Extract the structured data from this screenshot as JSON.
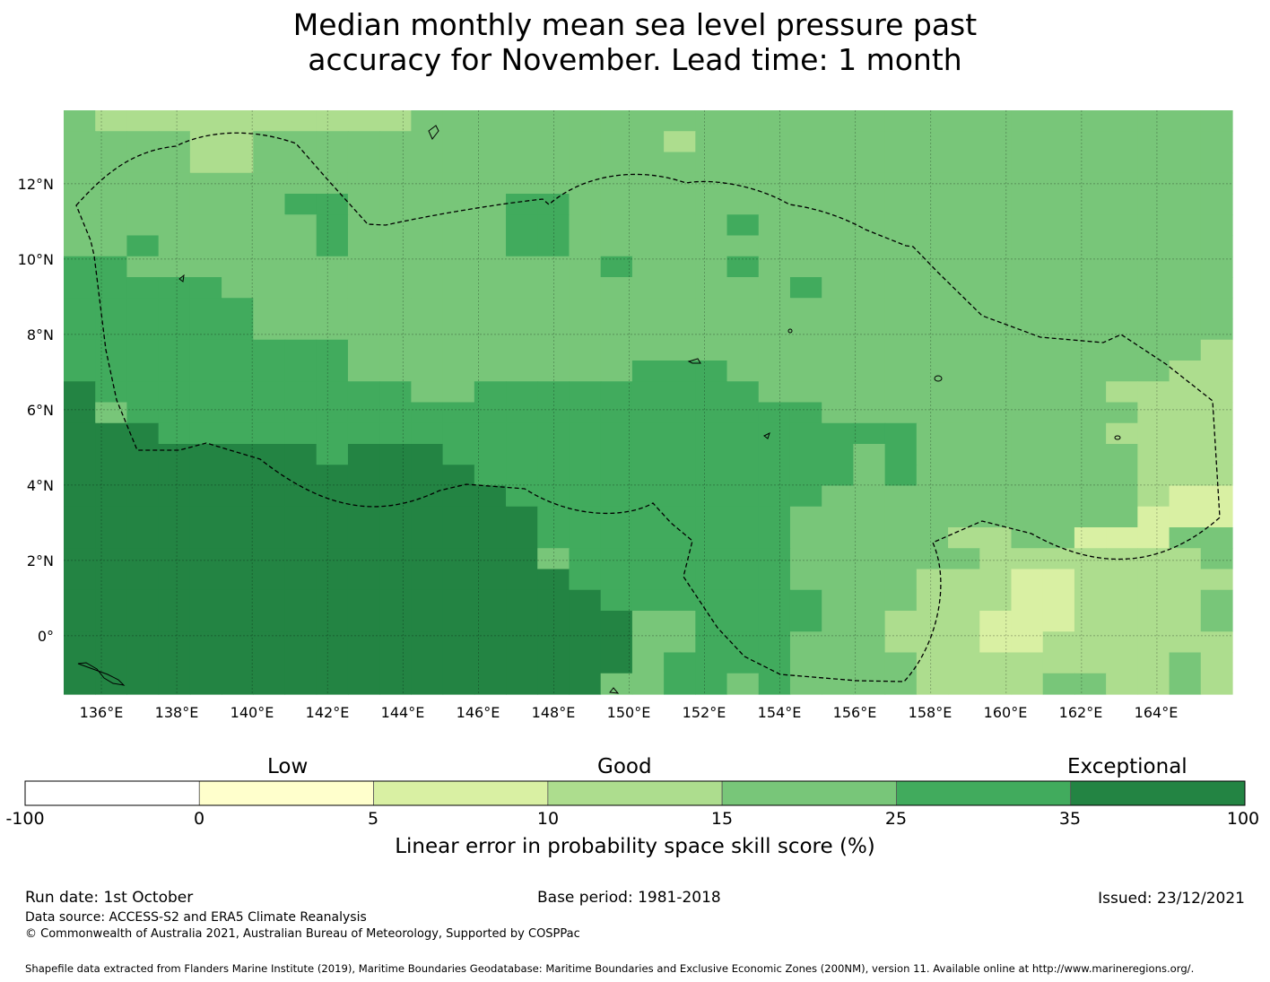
{
  "title": {
    "line1": "Median monthly mean sea level pressure past",
    "line2": "accuracy for November. Lead time: 1 month"
  },
  "map": {
    "lon_ticks": [
      "136°E",
      "138°E",
      "140°E",
      "142°E",
      "144°E",
      "146°E",
      "148°E",
      "150°E",
      "152°E",
      "154°E",
      "156°E",
      "158°E",
      "160°E",
      "162°E",
      "164°E"
    ],
    "lat_ticks": [
      "12°N",
      "10°N",
      "8°N",
      "6°N",
      "4°N",
      "2°N",
      "0°"
    ],
    "lon_range": [
      135,
      166
    ],
    "lat_range": [
      -1.55,
      13.95
    ],
    "colors": {
      "c2": "#d9f0a3",
      "c3": "#addd8e",
      "c4": "#78c679",
      "c5": "#41ab5d",
      "c6": "#238443"
    }
  },
  "colorbar": {
    "categories": {
      "low": "Low",
      "good": "Good",
      "exceptional": "Exceptional"
    },
    "ticks": [
      "-100",
      "0",
      "5",
      "10",
      "15",
      "25",
      "35",
      "100"
    ],
    "colors": [
      "#ffffff",
      "#ffffcc",
      "#d9f0a3",
      "#addd8e",
      "#78c679",
      "#41ab5d",
      "#238443"
    ],
    "label": "Linear error in probability space skill score (%)"
  },
  "footer": {
    "run_date": "Run date: 1st October",
    "base_period": "Base period: 1981-2018",
    "issued": "Issued: 23/12/2021",
    "data_source": "Data source: ACCESS-S2 and ERA5 Climate Reanalysis",
    "copyright": "© Commonwealth of Australia 2021, Australian Bureau of Meteorology, Supported by COSPPac",
    "shapefile": "Shapefile data extracted from Flanders Marine Institute (2019), Maritime Boundaries Geodatabase: Maritime Boundaries and Exclusive Economic Zones (200NM), version 11. Available online at http://www.marineregions.org/."
  }
}
